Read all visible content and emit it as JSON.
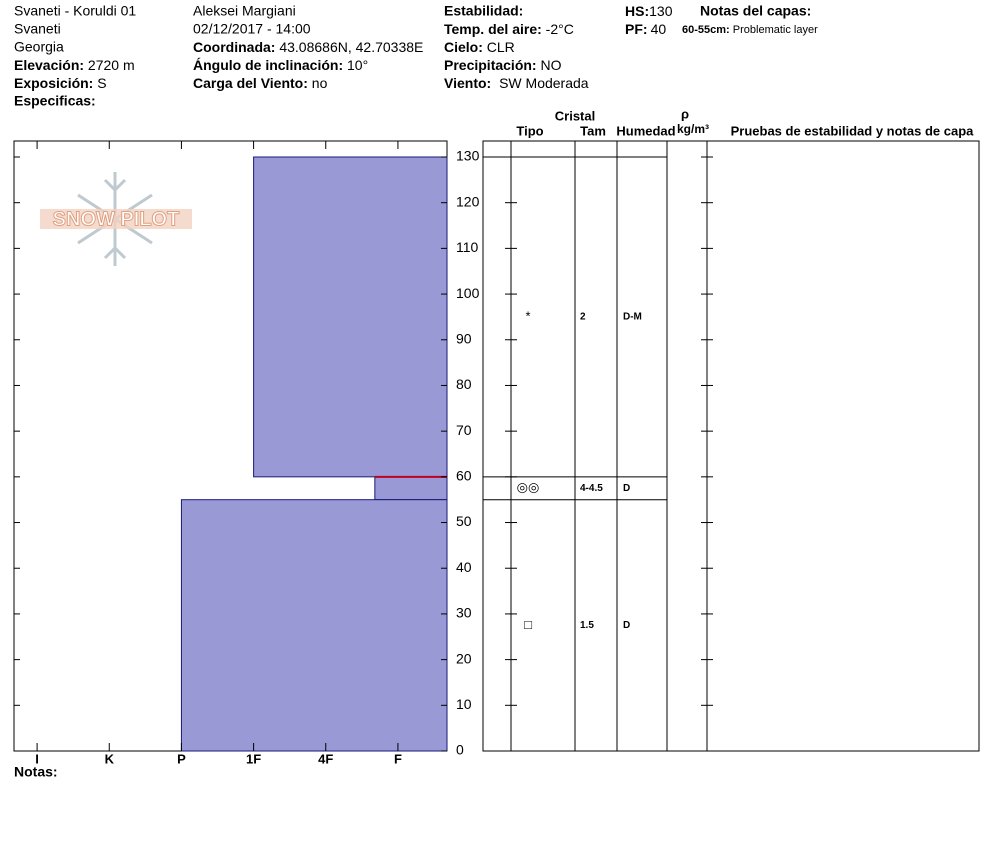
{
  "header": {
    "site": "Svaneti - Koruldi 01",
    "region": "Svaneti",
    "country": "Georgia",
    "observer": "Aleksei Margiani",
    "datetime": "02/12/2017 - 14:00",
    "elevation": {
      "label": "Elevación:",
      "value": "2720 m"
    },
    "aspect": {
      "label": "Exposición:",
      "value": "S"
    },
    "specifics": {
      "label": "Especificas:"
    },
    "coordinates": {
      "label": "Coordinada:",
      "value": "43.08686N, 42.70338E"
    },
    "slope": {
      "label": "Ángulo de inclinación:",
      "value": "10°"
    },
    "wind_loading": {
      "label": "Carga del Viento:",
      "value": "no"
    },
    "stability": {
      "label": "Estabilidad:"
    },
    "air_temp": {
      "label": "Temp. del aire:",
      "value": "-2°C"
    },
    "sky": {
      "label": "Cielo:",
      "value": "CLR"
    },
    "precip": {
      "label": "Precipitación:",
      "value": "NO"
    },
    "wind": {
      "label": "Viento:",
      "value": "SW Moderada"
    },
    "hs": {
      "label": "HS:",
      "value": "130"
    },
    "pf": {
      "label": "PF:",
      "value": "40"
    },
    "layer_notes": {
      "label": "Notas del capas:",
      "items": [
        {
          "range": "60-55cm:",
          "text": "Problematic layer"
        }
      ]
    }
  },
  "chart_data": {
    "type": "bar",
    "logo": "SNOW PILOT",
    "color": "#9999d6",
    "ylim": [
      0,
      133.5
    ],
    "yticks": [
      0,
      10,
      20,
      30,
      40,
      50,
      60,
      70,
      80,
      90,
      100,
      110,
      120,
      130
    ],
    "xlim": [
      6.32,
      0.32
    ],
    "xticks": [
      {
        "value": 6,
        "label": "I"
      },
      {
        "value": 5,
        "label": "K"
      },
      {
        "value": 4,
        "label": "P"
      },
      {
        "value": 3,
        "label": "1F"
      },
      {
        "value": 2,
        "label": "4F"
      },
      {
        "value": 1,
        "label": "F"
      }
    ],
    "layers": [
      {
        "top": 130,
        "bottom": 60,
        "hardness": 3,
        "grain": "*",
        "size": "2",
        "moisture": "D-M"
      },
      {
        "top": 60,
        "bottom": 55,
        "hardness": 1.32,
        "grain": "◎◎",
        "size": "4-4.5",
        "moisture": "D"
      },
      {
        "top": 55,
        "bottom": 0,
        "hardness": 4,
        "grain": "□",
        "size": "1.5",
        "moisture": "D"
      }
    ],
    "table": {
      "group": "Cristal",
      "columns": [
        "Tipo",
        "Tam",
        "Humedad"
      ],
      "density_symbol": "ρ",
      "density_unit": "kg/m³",
      "notes_column": "Pruebas de estabilidad y notas de capa"
    }
  },
  "footer": {
    "notes": "Notas:"
  }
}
